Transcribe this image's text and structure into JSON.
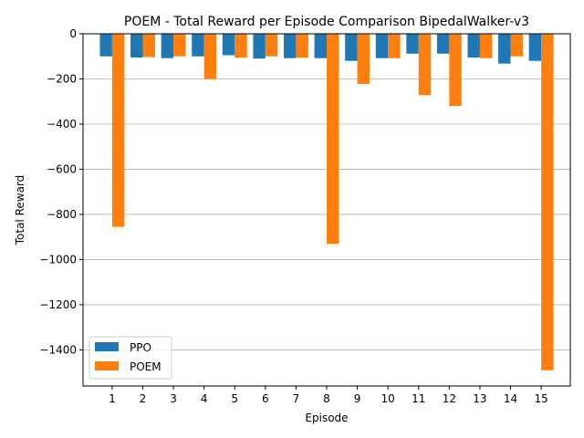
{
  "chart_data": {
    "type": "bar",
    "title": "POEM - Total Reward per Episode Comparison BipedalWalker-v3",
    "xlabel": "Episode",
    "ylabel": "Total Reward",
    "categories": [
      "1",
      "2",
      "3",
      "4",
      "5",
      "6",
      "7",
      "8",
      "9",
      "10",
      "11",
      "12",
      "13",
      "14",
      "15"
    ],
    "series": [
      {
        "name": "PPO",
        "color": "#1f77b4",
        "values": [
          -100,
          -105,
          -108,
          -100,
          -95,
          -110,
          -108,
          -108,
          -120,
          -108,
          -88,
          -88,
          -105,
          -132,
          -120
        ]
      },
      {
        "name": "POEM",
        "color": "#ff7f0e",
        "values": [
          -855,
          -103,
          -100,
          -200,
          -105,
          -100,
          -105,
          -930,
          -222,
          -108,
          -272,
          -320,
          -108,
          -100,
          -1490
        ]
      }
    ],
    "ylim": [
      -1560,
      0
    ],
    "yticks": [
      0,
      -200,
      -400,
      -600,
      -800,
      -1000,
      -1200,
      -1400
    ],
    "ytick_labels": [
      "0",
      "−200",
      "−400",
      "−600",
      "−800",
      "−1000",
      "−1200",
      "−1400"
    ],
    "grid": "horizontal",
    "legend_position": "lower-left"
  }
}
